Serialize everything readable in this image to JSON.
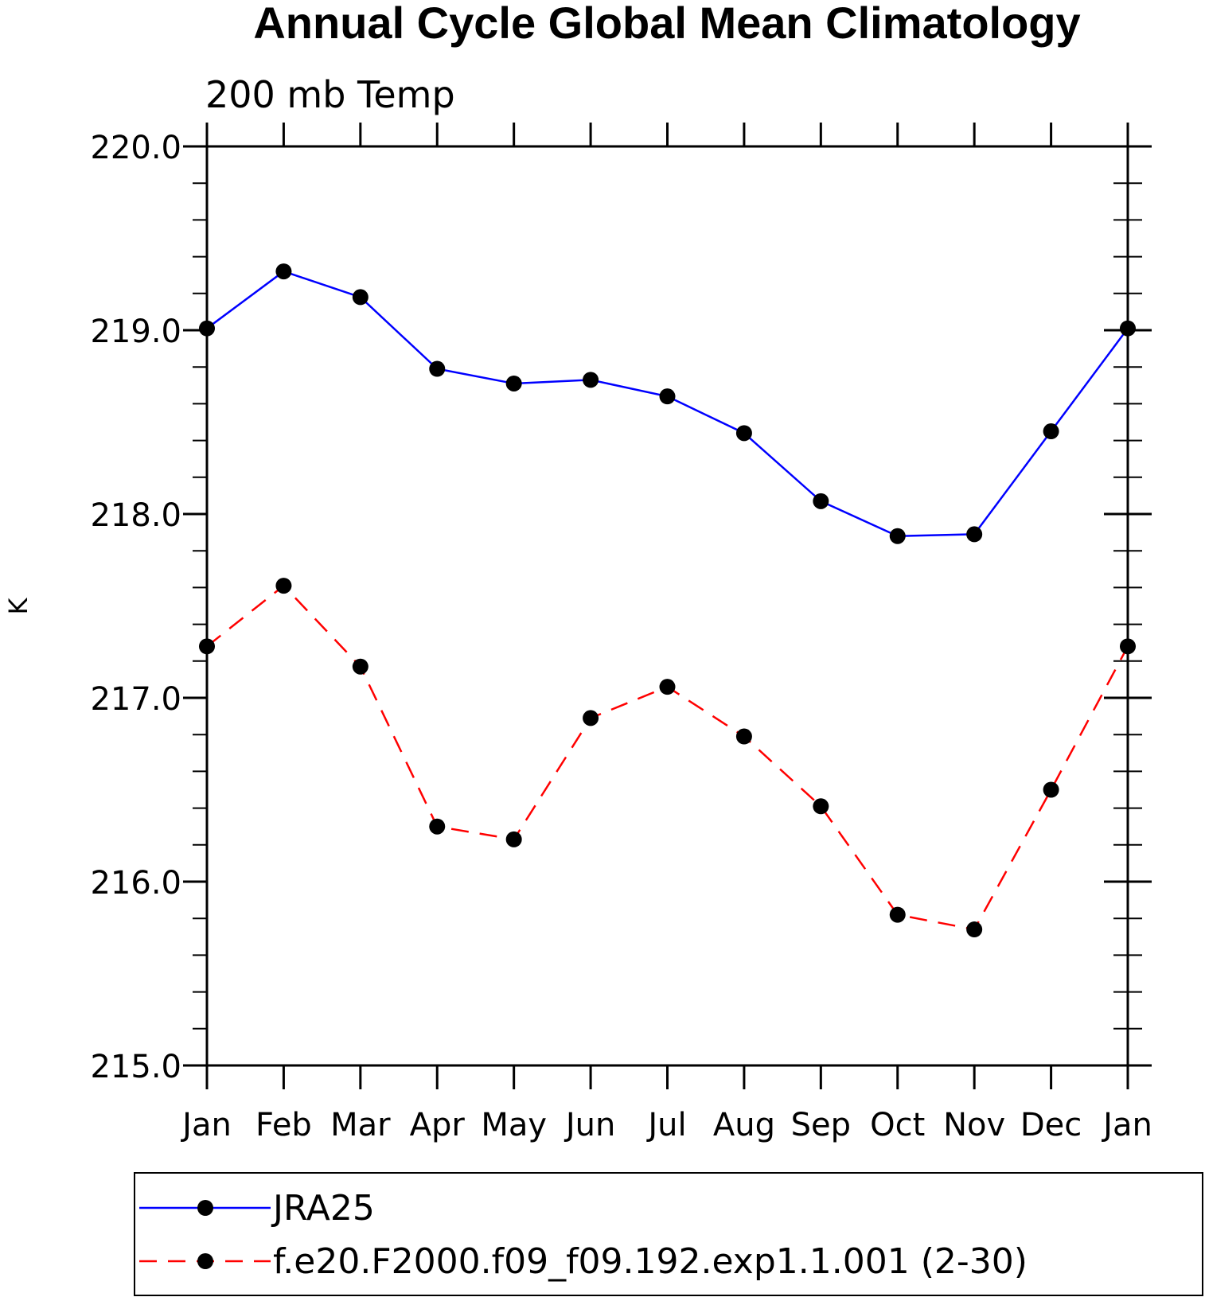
{
  "chart_data": {
    "type": "line",
    "title": "Annual Cycle Global Mean Climatology",
    "subtitle": "200 mb Temp",
    "xlabel": "",
    "ylabel": "K",
    "categories": [
      "Jan",
      "Feb",
      "Mar",
      "Apr",
      "May",
      "Jun",
      "Jul",
      "Aug",
      "Sep",
      "Oct",
      "Nov",
      "Dec",
      "Jan"
    ],
    "ylim": [
      215.0,
      220.0
    ],
    "yticks": [
      "215.0",
      "216.0",
      "217.0",
      "218.0",
      "219.0",
      "220.0"
    ],
    "series": [
      {
        "name": "JRA25",
        "color": "#0000ff",
        "style": "solid",
        "marker": "filled-circle",
        "values": [
          219.01,
          219.32,
          219.18,
          218.79,
          218.71,
          218.73,
          218.64,
          218.44,
          218.07,
          217.88,
          217.89,
          218.45,
          219.01
        ]
      },
      {
        "name": "f.e20.F2000.f09_f09.192.exp1.1.001 (2-30)",
        "color": "#ff0000",
        "style": "dashed",
        "marker": "filled-circle",
        "values": [
          217.28,
          217.61,
          217.17,
          216.3,
          216.23,
          216.89,
          217.06,
          216.79,
          216.41,
          215.82,
          215.74,
          216.5,
          217.28
        ]
      }
    ],
    "legend_position": "bottom",
    "grid": false
  }
}
